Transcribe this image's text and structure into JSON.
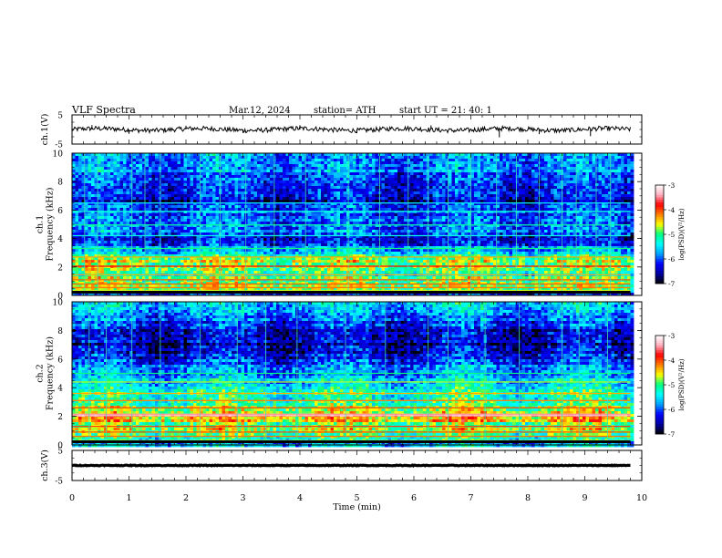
{
  "header": {
    "title": "VLF  Spectra",
    "date": "Mar.12, 2024",
    "station": "station= ATH",
    "start": "start  UT  =    21: 40: 1"
  },
  "colormap": [
    "#000000",
    "#0000a0",
    "#0000ff",
    "#00a0ff",
    "#00ffff",
    "#00ff80",
    "#ffff00",
    "#ff8000",
    "#ff0000",
    "#ffb0c0",
    "#ffffff"
  ],
  "chart_data": [
    {
      "type": "line",
      "name": "ch1-waveform",
      "ylabel": "ch.1(V)",
      "ylim": [
        -5,
        5
      ],
      "yticks": [
        "5",
        "-5"
      ],
      "xlim": [
        0,
        10
      ],
      "baseline": 0,
      "noise_amplitude": 0.8,
      "line_color": "#000000",
      "spikes": [
        {
          "x": 0.35,
          "y": 1.5
        },
        {
          "x": 1.0,
          "y": -1.5
        },
        {
          "x": 2.0,
          "y": 1.3
        },
        {
          "x": 3.0,
          "y": -1.2
        },
        {
          "x": 4.0,
          "y": 1.5
        },
        {
          "x": 5.0,
          "y": -1.3
        },
        {
          "x": 6.3,
          "y": 1.4
        },
        {
          "x": 7.5,
          "y": -2.7
        },
        {
          "x": 8.2,
          "y": -1.6
        },
        {
          "x": 9.1,
          "y": -2.3
        }
      ]
    },
    {
      "type": "heatmap",
      "name": "ch1-spectrogram",
      "ylabel": "ch.1\nFrequency (kHz)",
      "ylim": [
        0,
        10
      ],
      "yticks": [
        "10",
        "8",
        "6",
        "4",
        "2",
        "0"
      ],
      "xlim": [
        0,
        10
      ],
      "data_end_x": 9.8,
      "colorbar": {
        "label": "log(PSD)(V²/Hz)",
        "range": [
          -7,
          -3
        ],
        "ticks": [
          "-3",
          "-4",
          "-5",
          "-6",
          "-7"
        ]
      },
      "frequency_profile": [
        {
          "f": 0.0,
          "level": 0.1
        },
        {
          "f": 0.5,
          "level": 0.5
        },
        {
          "f": 1.0,
          "level": 0.55
        },
        {
          "f": 1.5,
          "level": 0.45
        },
        {
          "f": 2.0,
          "level": 0.6
        },
        {
          "f": 2.5,
          "level": 0.55
        },
        {
          "f": 3.0,
          "level": 0.35
        },
        {
          "f": 4.0,
          "level": 0.2
        },
        {
          "f": 5.0,
          "level": 0.28
        },
        {
          "f": 6.0,
          "level": 0.22
        },
        {
          "f": 7.0,
          "level": 0.15
        },
        {
          "f": 8.0,
          "level": 0.22
        },
        {
          "f": 9.0,
          "level": 0.32
        },
        {
          "f": 10.0,
          "level": 0.35
        }
      ],
      "lines_kHz": [
        0.2,
        0.35,
        0.55,
        0.8,
        1.1,
        1.45,
        2.05,
        2.7,
        3.3,
        4.2,
        4.95,
        5.9,
        6.5
      ],
      "sferic_times": [
        0.22,
        0.45,
        1.05,
        1.28,
        1.55,
        2.25,
        2.6,
        3.05,
        3.55,
        4.1,
        4.85,
        5.4,
        5.9,
        6.25,
        6.6,
        7.0,
        7.45,
        7.8,
        8.2,
        8.6,
        8.85,
        9.2,
        9.45
      ]
    },
    {
      "type": "heatmap",
      "name": "ch2-spectrogram",
      "ylabel": "ch.2\nFrequency (kHz)",
      "ylim": [
        0,
        10
      ],
      "yticks": [
        "10",
        "8",
        "6",
        "4",
        "2",
        "0"
      ],
      "xlim": [
        0,
        10
      ],
      "data_end_x": 9.8,
      "colorbar": {
        "label": "log(PSD)(V²/Hz)",
        "range": [
          -7,
          -3
        ],
        "ticks": [
          "-3",
          "-4",
          "-5",
          "-6",
          "-7"
        ]
      },
      "frequency_profile": [
        {
          "f": 0.0,
          "level": 0.2
        },
        {
          "f": 0.5,
          "level": 0.5
        },
        {
          "f": 1.0,
          "level": 0.55
        },
        {
          "f": 1.5,
          "level": 0.55
        },
        {
          "f": 2.0,
          "level": 0.75
        },
        {
          "f": 2.5,
          "level": 0.55
        },
        {
          "f": 3.0,
          "level": 0.5
        },
        {
          "f": 3.5,
          "level": 0.48
        },
        {
          "f": 4.0,
          "level": 0.42
        },
        {
          "f": 4.5,
          "level": 0.35
        },
        {
          "f": 5.0,
          "level": 0.3
        },
        {
          "f": 6.0,
          "level": 0.2
        },
        {
          "f": 7.0,
          "level": 0.1
        },
        {
          "f": 8.0,
          "level": 0.18
        },
        {
          "f": 9.0,
          "level": 0.28
        },
        {
          "f": 10.0,
          "level": 0.32
        }
      ],
      "lines_kHz": [
        0.3,
        0.6,
        0.9,
        1.3,
        2.05,
        2.15,
        2.6,
        3.1,
        3.6,
        4.4,
        5.0
      ],
      "sferic_times": [
        0.3,
        0.6,
        1.05,
        1.55,
        2.25,
        2.9,
        3.4,
        3.95,
        4.8,
        5.5,
        6.25,
        6.6,
        7.25,
        7.85,
        8.6,
        8.9,
        9.4
      ]
    },
    {
      "type": "line",
      "name": "ch3-waveform",
      "ylabel": "ch.3(V)",
      "ylim": [
        -5,
        5
      ],
      "yticks": [
        "5",
        "-5"
      ],
      "xlim": [
        0,
        10
      ],
      "baseline": 0,
      "noise_amplitude": 0.12,
      "line_color": "#000000",
      "spikes": []
    }
  ],
  "x_axis": {
    "label": "Time  (min)",
    "ticks": [
      "0",
      "1",
      "2",
      "3",
      "4",
      "5",
      "6",
      "7",
      "8",
      "9",
      "10"
    ]
  }
}
